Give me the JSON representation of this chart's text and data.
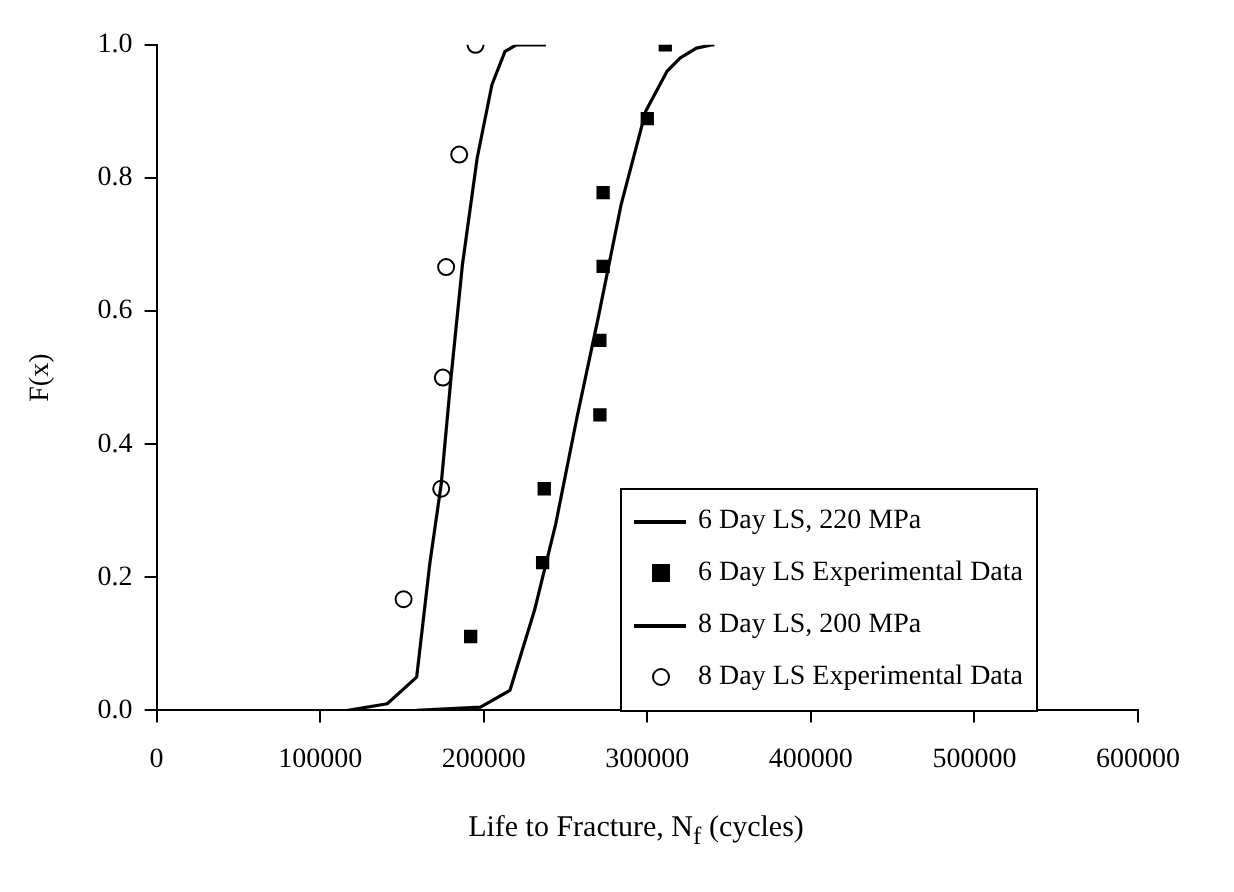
{
  "chart_data": {
    "type": "line",
    "xlabel": "Life to Fracture, N$_{f}$ (cycles)",
    "ylabel": "F(x)",
    "xlim": [
      0,
      600000
    ],
    "xticks": [
      0,
      100000,
      200000,
      300000,
      400000,
      500000,
      600000
    ],
    "ylim": [
      0,
      1
    ],
    "yticks": [
      {
        "value": 0,
        "label": "0.0"
      },
      {
        "value": 0.2,
        "label": "0.2"
      },
      {
        "value": 0.4,
        "label": "0.4"
      },
      {
        "value": 0.6,
        "label": "0.6"
      },
      {
        "value": 0.8,
        "label": "0.8"
      },
      {
        "value": 1,
        "label": "1.0"
      }
    ],
    "grid": false,
    "legend": "bottom right",
    "series": [
      {
        "name": "6 Day LS, 220 MPa",
        "marker": "none",
        "line_style": "solid",
        "color": "#000000",
        "x": [
          159000,
          198000,
          216000,
          231000,
          244000,
          257000,
          270000,
          284000,
          299000,
          312000,
          320000,
          330000,
          340000,
          341000
        ],
        "values": [
          0,
          0.005,
          0.03,
          0.15,
          0.28,
          0.44,
          0.59,
          0.76,
          0.9,
          0.96,
          0.98,
          0.995,
          1,
          1
        ]
      },
      {
        "name": "6 Day LS Experimental Data",
        "type": "scatter",
        "marker": "square",
        "color": "#000000",
        "x": [
          192000,
          236000,
          237000,
          271000,
          271000,
          273000,
          273000,
          300000,
          311000
        ],
        "values": [
          0.111,
          0.222,
          0.333,
          0.444,
          0.556,
          0.667,
          0.778,
          0.889,
          1
        ]
      },
      {
        "name": "8 Day LS, 200 MPa",
        "marker": "none",
        "line_style": "solid",
        "color": "#000000",
        "x": [
          117000,
          141000,
          159000,
          167000,
          174000,
          180000,
          187000,
          196000,
          205000,
          213000,
          220000,
          238000
        ],
        "values": [
          0,
          0.01,
          0.05,
          0.22,
          0.34,
          0.5,
          0.67,
          0.83,
          0.94,
          0.99,
          1,
          1
        ]
      },
      {
        "name": "8 Day LS Experimental Data",
        "type": "scatter",
        "marker": "circle",
        "color": "#000000",
        "x": [
          151000,
          174000,
          175000,
          177000,
          185000,
          195000
        ],
        "values": [
          0.167,
          0.333,
          0.5,
          0.666,
          0.835,
          1
        ]
      }
    ]
  }
}
